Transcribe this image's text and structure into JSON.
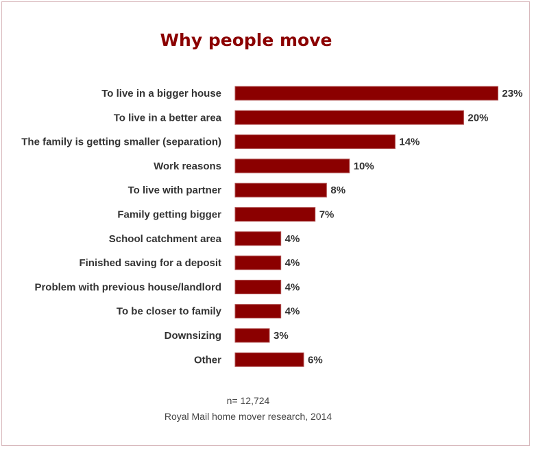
{
  "chart_data": {
    "type": "bar",
    "orientation": "horizontal",
    "title": "Why people move",
    "categories": [
      "To live in a bigger house",
      "To live in a better area",
      "The family is getting smaller (separation)",
      "Work reasons",
      "To live with partner",
      "Family getting bigger",
      "School catchment area",
      "Finished saving for a deposit",
      "Problem with previous house/landlord",
      "To be closer to family",
      "Downsizing",
      "Other"
    ],
    "values": [
      23,
      20,
      14,
      10,
      8,
      7,
      4,
      4,
      4,
      4,
      3,
      6
    ],
    "value_suffix": "%",
    "bar_color": "#8b0000",
    "grid": false,
    "xlabel": "",
    "ylabel": ""
  },
  "footer": {
    "n": "n= 12,724",
    "source": "Royal Mail home mover research, 2014"
  }
}
